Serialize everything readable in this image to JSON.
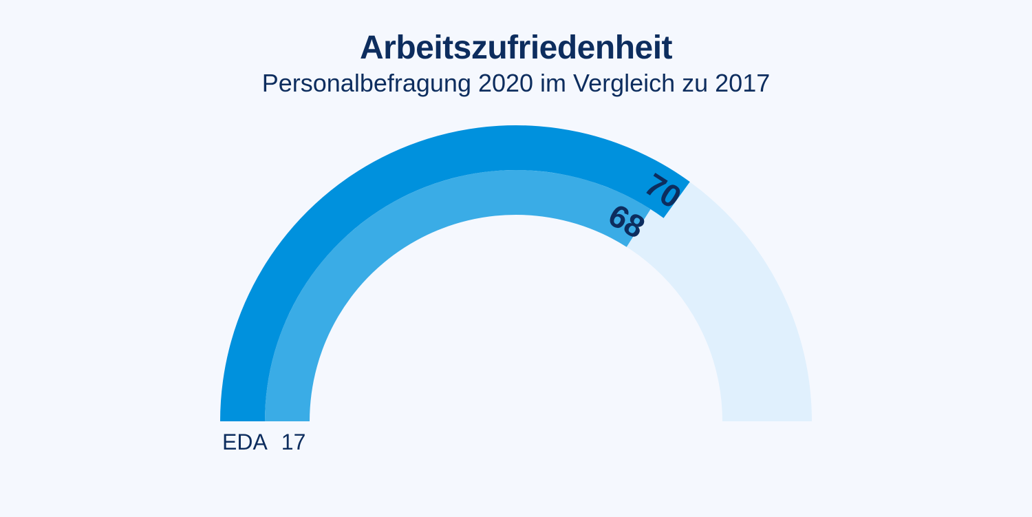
{
  "chart_data": {
    "type": "gauge",
    "title": "Arbeitszufriedenheit",
    "subtitle": "Personalbefragung 2020 im Vergleich zu 2017",
    "range": [
      0,
      100
    ],
    "series": [
      {
        "value": 70,
        "label": "70",
        "color": "#0091dd"
      },
      {
        "value": 68,
        "label": "68",
        "color": "#3aace6"
      }
    ],
    "track_color": "#e0f0fd",
    "label_color": "#0d2d5e",
    "legend": {
      "name": "EDA",
      "value": "17"
    }
  }
}
